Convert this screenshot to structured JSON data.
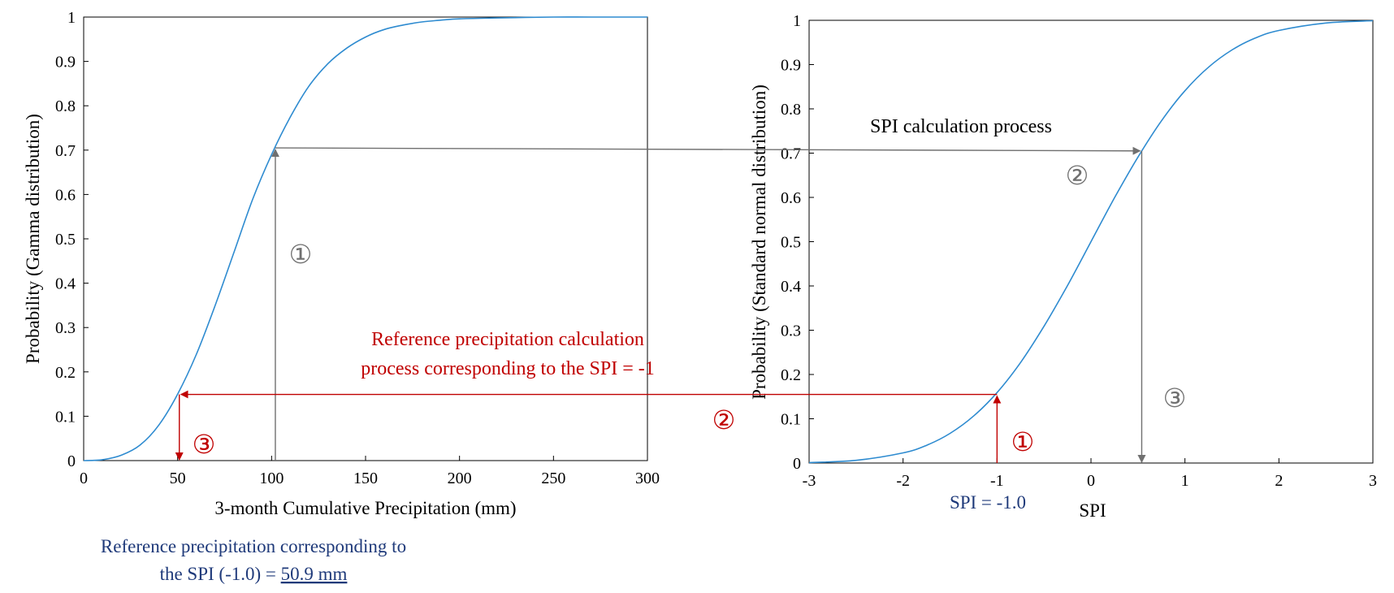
{
  "colors": {
    "curve": "#2e8bd0",
    "gray": "#707070",
    "red": "#c00000",
    "navy": "#1f3a7a",
    "axis": "#000000"
  },
  "chart_data": [
    {
      "type": "line",
      "name": "gamma-cdf",
      "xlabel": "3-month Cumulative Precipitation (mm)",
      "ylabel": "Probability (Gamma distribution)",
      "xlim": [
        0,
        300
      ],
      "ylim": [
        0,
        1
      ],
      "x_ticks": [
        "0",
        "50",
        "100",
        "150",
        "200",
        "250",
        "300"
      ],
      "y_ticks": [
        "0",
        "0.1",
        "0.2",
        "0.3",
        "0.4",
        "0.5",
        "0.6",
        "0.7",
        "0.8",
        "0.9",
        "1"
      ],
      "grid": false,
      "series": [
        {
          "x": [
            0,
            10,
            20,
            30,
            40,
            50,
            60,
            70,
            80,
            90,
            100,
            110,
            120,
            130,
            140,
            150,
            160,
            170,
            180,
            190,
            200,
            220,
            250,
            270,
            300
          ],
          "y": [
            0.0,
            0.002,
            0.012,
            0.035,
            0.08,
            0.15,
            0.24,
            0.35,
            0.47,
            0.59,
            0.69,
            0.775,
            0.845,
            0.895,
            0.93,
            0.955,
            0.972,
            0.982,
            0.989,
            0.993,
            0.996,
            0.998,
            1.0,
            1.0,
            1.0
          ]
        }
      ]
    },
    {
      "type": "line",
      "name": "standard-normal-cdf",
      "xlabel": "SPI",
      "ylabel": "Probability (Standard normal distribution)",
      "xlim": [
        -3,
        3
      ],
      "ylim": [
        0,
        1
      ],
      "x_ticks": [
        "-3",
        "-2",
        "-1",
        "0",
        "1",
        "2",
        "3"
      ],
      "y_ticks": [
        "0",
        "0.1",
        "0.2",
        "0.3",
        "0.4",
        "0.5",
        "0.6",
        "0.7",
        "0.8",
        "0.9",
        "1"
      ],
      "grid": false,
      "series": [
        {
          "x": [
            -3,
            -2.5,
            -2,
            -1.75,
            -1.5,
            -1.25,
            -1,
            -0.75,
            -0.5,
            -0.25,
            0,
            0.25,
            0.5,
            0.75,
            1,
            1.25,
            1.5,
            1.75,
            2,
            2.5,
            3
          ],
          "y": [
            0.001,
            0.006,
            0.023,
            0.04,
            0.067,
            0.106,
            0.159,
            0.227,
            0.309,
            0.401,
            0.5,
            0.599,
            0.691,
            0.773,
            0.841,
            0.894,
            0.933,
            0.96,
            0.977,
            0.994,
            0.999
          ]
        }
      ]
    }
  ],
  "annotations": {
    "spi_process_label": "SPI calculation  process",
    "ref_process_line1": "Reference precipitation  calculation",
    "ref_process_line2": "process corresponding to the  SPI = -1",
    "spi_value_label": "SPI = -1.0",
    "ref_result_line1": "Reference precipitation  corresponding to",
    "ref_result_line2_prefix": "the SPI (-1.0) = ",
    "ref_result_value": "50.9 mm",
    "step1": "①",
    "step2": "②",
    "step3": "③"
  },
  "process_paths": {
    "gray": {
      "precip": 102,
      "prob": 0.705,
      "spi": 0.54
    },
    "red": {
      "spi": -1.0,
      "prob": 0.155,
      "precip": 50.9
    }
  }
}
